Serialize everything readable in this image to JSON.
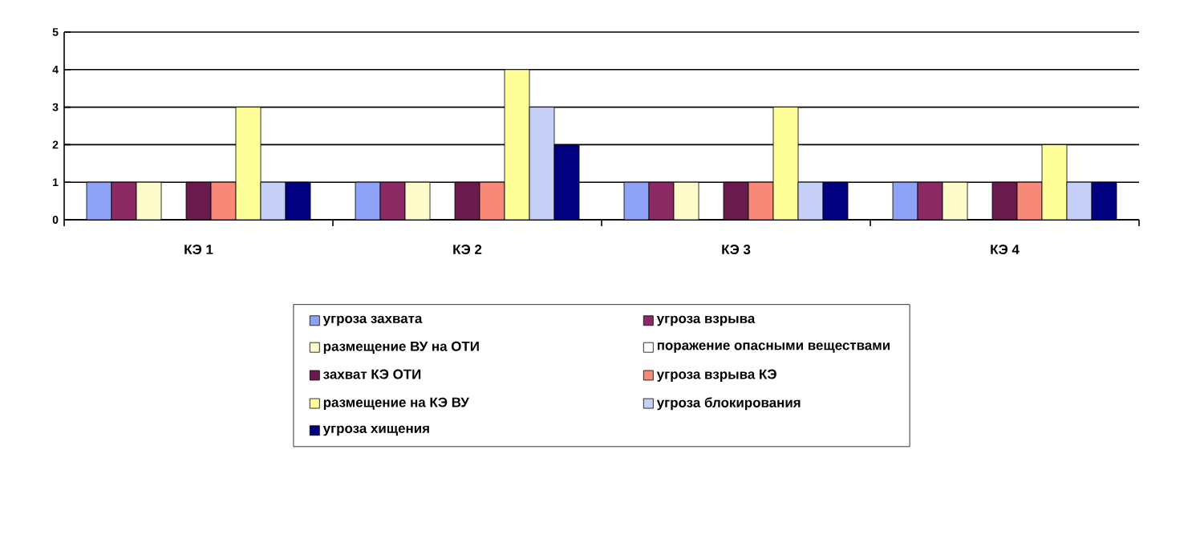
{
  "chart_data": {
    "type": "bar",
    "categories": [
      "КЭ 1",
      "КЭ 2",
      "КЭ 3",
      "КЭ 4"
    ],
    "ylim": [
      0,
      5
    ],
    "yticks": [
      0,
      1,
      2,
      3,
      4,
      5
    ],
    "grid": "y",
    "legend": "bottom",
    "series": [
      {
        "name": "угроза захвата",
        "color": "#8ea2f6",
        "values": [
          1,
          1,
          1,
          1
        ]
      },
      {
        "name": "угроза взрыва",
        "color": "#8b2a63",
        "values": [
          1,
          1,
          1,
          1
        ]
      },
      {
        "name": "размещение ВУ на ОТИ",
        "color": "#fffccc",
        "values": [
          1,
          1,
          1,
          1
        ]
      },
      {
        "name": "поражение опасными веществами",
        "color": "#ffffff",
        "values": [
          0,
          0,
          0,
          0
        ]
      },
      {
        "name": "захват КЭ ОТИ",
        "color": "#6b1a4e",
        "values": [
          1,
          1,
          1,
          1
        ]
      },
      {
        "name": "угроза взрыва КЭ",
        "color": "#f88878",
        "values": [
          1,
          1,
          1,
          1
        ]
      },
      {
        "name": "размещение на КЭ ВУ",
        "color": "#ffff99",
        "values": [
          3,
          4,
          3,
          2
        ]
      },
      {
        "name": "угроза блокирования",
        "color": "#c6cff8",
        "values": [
          1,
          3,
          1,
          1
        ]
      },
      {
        "name": "угроза хищения",
        "color": "#000080",
        "values": [
          1,
          2,
          1,
          1
        ]
      }
    ]
  }
}
